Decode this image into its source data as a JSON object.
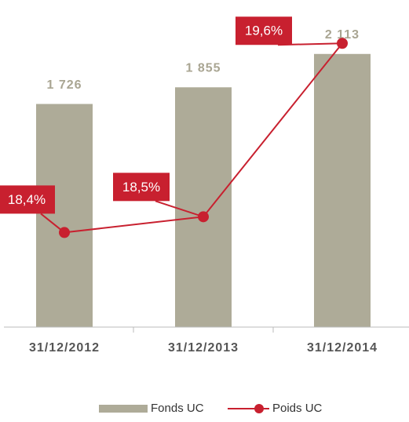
{
  "chart_data": {
    "type": "bar",
    "categories": [
      "31/12/2012",
      "31/12/2013",
      "31/12/2014"
    ],
    "series": [
      {
        "name": "Fonds UC",
        "type": "bar",
        "color": "#aeab98",
        "values": [
          1726,
          1855,
          2113
        ],
        "value_labels": [
          "1 726",
          "1 855",
          "2 113"
        ]
      },
      {
        "name": "Poids UC",
        "type": "line",
        "axis": "y2",
        "color": "#c8202f",
        "values": [
          18.4,
          18.5,
          19.6
        ],
        "value_labels": [
          "18,4%",
          "18,5%",
          "19,6%"
        ]
      }
    ],
    "ylim": [
      0,
      2500
    ],
    "y2lim": [
      17.8,
      19.85
    ]
  }
}
